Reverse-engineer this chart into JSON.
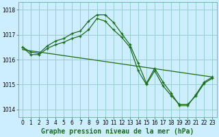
{
  "title": "Graphe pression niveau de la mer (hPa)",
  "bg_color": "#cceeff",
  "grid_color": "#99cccc",
  "line_color": "#1a6b1a",
  "xlim": [
    -0.5,
    23.5
  ],
  "ylim": [
    1013.7,
    1018.3
  ],
  "yticks": [
    1014,
    1015,
    1016,
    1017,
    1018
  ],
  "xticks": [
    0,
    1,
    2,
    3,
    4,
    5,
    6,
    7,
    8,
    9,
    10,
    11,
    12,
    13,
    14,
    15,
    16,
    17,
    18,
    19,
    20,
    21,
    22,
    23
  ],
  "series1_x": [
    0,
    1,
    2,
    3,
    4,
    5,
    6,
    7,
    8,
    9,
    10,
    11,
    12,
    13,
    14,
    15,
    16,
    17,
    18,
    19,
    20,
    21,
    22,
    23
  ],
  "series1_y": [
    1016.5,
    1016.3,
    1016.25,
    1016.55,
    1016.75,
    1016.85,
    1017.05,
    1017.15,
    1017.55,
    1017.8,
    1017.8,
    1017.5,
    1017.05,
    1016.6,
    1015.85,
    1015.05,
    1015.65,
    1015.1,
    1014.65,
    1014.15,
    1014.15,
    1014.6,
    1015.1,
    1015.3
  ],
  "series2_x": [
    0,
    1,
    2,
    3,
    4,
    5,
    6,
    7,
    8,
    9,
    10,
    11,
    12,
    13,
    14,
    15,
    16,
    17,
    18,
    19,
    20,
    21,
    22,
    23
  ],
  "series2_y": [
    1016.5,
    1016.2,
    1016.2,
    1016.45,
    1016.6,
    1016.7,
    1016.85,
    1016.95,
    1017.2,
    1017.65,
    1017.55,
    1017.2,
    1016.9,
    1016.5,
    1015.55,
    1015.0,
    1015.55,
    1014.95,
    1014.55,
    1014.2,
    1014.2,
    1014.55,
    1015.05,
    1015.25
  ],
  "series3_x": [
    0,
    23
  ],
  "series3_y": [
    1016.4,
    1015.3
  ],
  "tick_fontsize": 5.5,
  "title_fontsize": 7,
  "label_fontsize": 7
}
